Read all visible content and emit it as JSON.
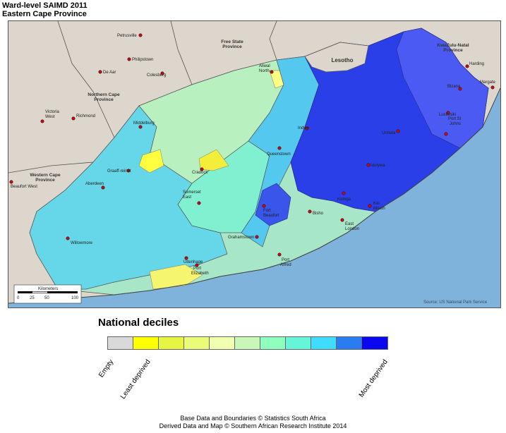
{
  "title": {
    "line1": "Ward-level SAIMD 2011",
    "line2": "Eastern Cape Province"
  },
  "map": {
    "source_note": "Source: US National Park Service",
    "scale_bar": {
      "unit_label": "Kilometers",
      "ticks": [
        "0",
        "25",
        "50",
        "100"
      ]
    },
    "province_labels": [
      {
        "text": "Free State",
        "text2": "Province"
      },
      {
        "text": "Lesotho",
        "text2": ""
      },
      {
        "text": "KwaZulu-Natal",
        "text2": "Province"
      },
      {
        "text": "Northern Cape",
        "text2": "Province"
      },
      {
        "text": "Western Cape",
        "text2": "Province"
      }
    ],
    "places": [
      {
        "name": "Petrusville",
        "name2": ""
      },
      {
        "name": "Philipstown",
        "name2": ""
      },
      {
        "name": "De Aar",
        "name2": ""
      },
      {
        "name": "Colesberg",
        "name2": ""
      },
      {
        "name": "Aliwal",
        "name2": "North"
      },
      {
        "name": "Harding",
        "name2": ""
      },
      {
        "name": "Margate",
        "name2": ""
      },
      {
        "name": "Bizana",
        "name2": ""
      },
      {
        "name": "Lusikisiki",
        "name2": ""
      },
      {
        "name": "Port St",
        "name2": "Johns"
      },
      {
        "name": "Victoria",
        "name2": "West"
      },
      {
        "name": "Richmond",
        "name2": ""
      },
      {
        "name": "Middelburg",
        "name2": ""
      },
      {
        "name": "Indwe",
        "name2": ""
      },
      {
        "name": "Umtata",
        "name2": ""
      },
      {
        "name": "Queenstown",
        "name2": ""
      },
      {
        "name": "Idutywa",
        "name2": ""
      },
      {
        "name": "Graaff-reinet",
        "name2": ""
      },
      {
        "name": "Cradock",
        "name2": ""
      },
      {
        "name": "Beaufort West",
        "name2": ""
      },
      {
        "name": "Aberdeen",
        "name2": ""
      },
      {
        "name": "Somerset",
        "name2": "East"
      },
      {
        "name": "Komga",
        "name2": ""
      },
      {
        "name": "Kei",
        "name2": "Mouth"
      },
      {
        "name": "Fort",
        "name2": "Beaufort"
      },
      {
        "name": "Bisho",
        "name2": ""
      },
      {
        "name": "East",
        "name2": "London"
      },
      {
        "name": "Willowmore",
        "name2": ""
      },
      {
        "name": "Grahamstown",
        "name2": ""
      },
      {
        "name": "Port",
        "name2": "Alfred"
      },
      {
        "name": "Uitenhage",
        "name2": ""
      },
      {
        "name": "Port",
        "name2": "Elizabeth"
      }
    ]
  },
  "legend": {
    "title": "National deciles",
    "colors": [
      "#d9d9d9",
      "#ffff00",
      "#e6f542",
      "#eafb7a",
      "#f0ffb0",
      "#c8f7b8",
      "#8fffc0",
      "#66f5d8",
      "#40dcff",
      "#2a7df0",
      "#0a08ee"
    ],
    "labels": {
      "empty": "Empty",
      "least": "Least deprived",
      "most": "Most deprived"
    }
  },
  "credits": {
    "line1": "Base Data and Boundaries © Statistics South Africa",
    "line2": "Derived Data and Map © Southern African Research Institute 2014"
  }
}
